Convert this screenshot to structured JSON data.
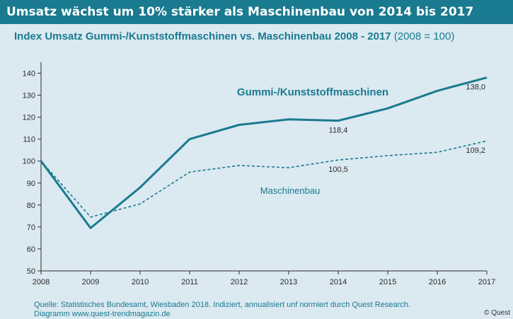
{
  "header": {
    "title": "Umsatz wächst um 10% stärker als Maschinenbau von 2014 bis 2017"
  },
  "chart_data": {
    "type": "line",
    "title": "Index Umsatz Gummi-/Kunststoffmaschinen vs. Maschinenbau 2008 - 2017",
    "subtitle": "(2008 = 100)",
    "xlabel": "",
    "ylabel": "",
    "x": [
      "2008",
      "2009",
      "2010",
      "2011",
      "2012",
      "2013",
      "2014",
      "2015",
      "2016",
      "2017"
    ],
    "ylim": [
      50,
      145
    ],
    "yticks": [
      50,
      60,
      70,
      80,
      90,
      100,
      110,
      120,
      130,
      140
    ],
    "grid": false,
    "series": [
      {
        "name": "Gummi-/Kunststoffmaschinen",
        "style": "solid",
        "color": "#1a7a8f",
        "values": [
          100,
          69.5,
          88,
          110,
          116.5,
          119,
          118.4,
          124,
          132,
          138.0
        ]
      },
      {
        "name": "Maschinenbau",
        "style": "dashed",
        "color": "#1a7a8f",
        "values": [
          100,
          74.5,
          80.5,
          95,
          98,
          97,
          100.5,
          102.5,
          104,
          109.2
        ]
      }
    ],
    "annotations": [
      {
        "series": 0,
        "index": 6,
        "text": "118,4"
      },
      {
        "series": 0,
        "index": 9,
        "text": "138,0"
      },
      {
        "series": 1,
        "index": 6,
        "text": "100,5"
      },
      {
        "series": 1,
        "index": 9,
        "text": "109,2"
      }
    ]
  },
  "footer": {
    "source_line1": "Quelle: Statistisches Bundesamt, Wiesbaden 2018. Indiziert, annualisiert unf normiert durch Quest Research.",
    "source_line2": "Diagramm  www.quest-trendmagazin.de",
    "copyright": "© Quest"
  },
  "colors": {
    "background": "#dbe9f1",
    "accent": "#1a7a8f",
    "axis": "#2b2b2b"
  }
}
